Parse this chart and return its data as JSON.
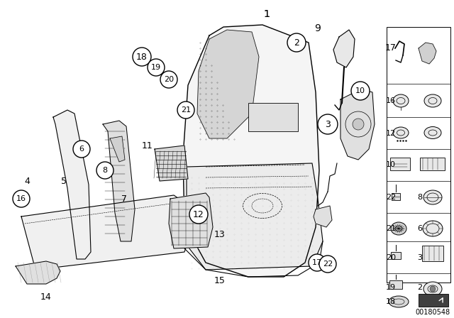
{
  "bg_color": "#ffffff",
  "fig_width": 6.4,
  "fig_height": 4.48,
  "dpi": 100,
  "watermark": "00180548"
}
